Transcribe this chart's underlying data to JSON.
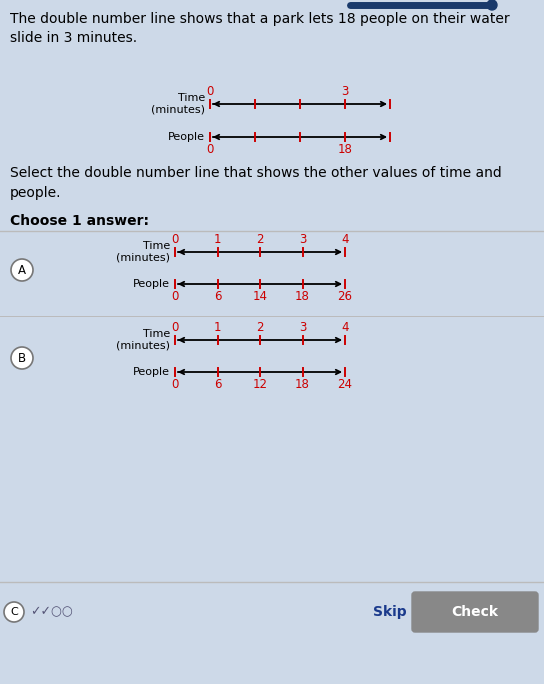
{
  "background_color": "#cdd9e8",
  "title_text": "The double number line shows that a park lets 18 people on their water\nslide in 3 minutes.",
  "select_text": "Select the double number line that shows the other values of time and\npeople.",
  "choose_text": "Choose 1 answer:",
  "top_time_labels": [
    "0",
    "",
    "",
    "3",
    ""
  ],
  "top_people_labels": [
    "0",
    "",
    "",
    "18",
    ""
  ],
  "option_A_time_labels": [
    "0",
    "1",
    "2",
    "3",
    "4"
  ],
  "option_A_people_labels": [
    "0",
    "6",
    "14",
    "18",
    "26"
  ],
  "option_B_time_labels": [
    "0",
    "1",
    "2",
    "3",
    "4"
  ],
  "option_B_people_labels": [
    "0",
    "6",
    "12",
    "18",
    "24"
  ],
  "skip_text": "Skip",
  "check_text": "Check",
  "tick_color": "#cc0000",
  "number_color": "#cc0000",
  "line_color": "#000000",
  "text_color": "#1a237e",
  "label_color": "#000000",
  "check_bg": "#888888",
  "footer_line_color": "#bbbbbb",
  "sep_color": "#bbbbbb"
}
